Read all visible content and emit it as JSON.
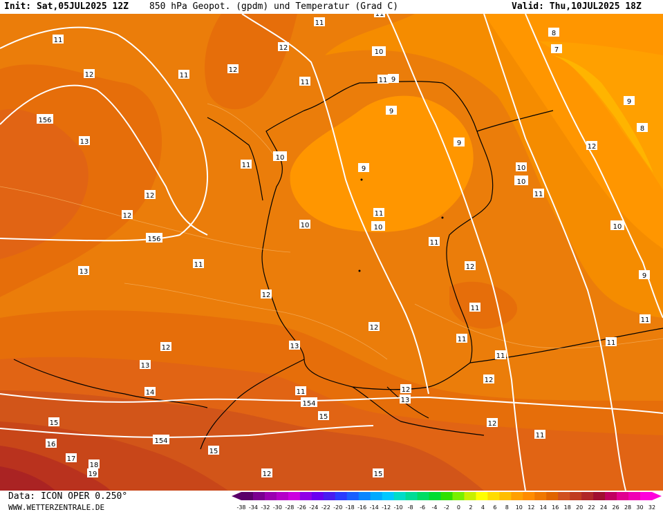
{
  "header": {
    "init": "Init: Sat,05JUL2025 12Z",
    "title": "850 hPa Geopot. (gpdm) und Temperatur (Grad C)",
    "valid": "Valid: Thu,10JUL2025 18Z"
  },
  "footer": {
    "data_source": "Data: ICON OPER 0.250°",
    "website": "WWW.WETTERZENTRALE.DE"
  },
  "legend": {
    "ticks": [
      "-38",
      "-34",
      "-32",
      "-30",
      "-28",
      "-26",
      "-24",
      "-22",
      "-20",
      "-18",
      "-16",
      "-14",
      "-12",
      "-10",
      "-8",
      "-6",
      "-4",
      "-2",
      "0",
      "2",
      "4",
      "6",
      "8",
      "10",
      "12",
      "14",
      "16",
      "18",
      "20",
      "22",
      "24",
      "26",
      "28",
      "30",
      "32"
    ],
    "colors": [
      "#5a006a",
      "#7a0090",
      "#9a00b0",
      "#b400c8",
      "#cc00e0",
      "#9000e6",
      "#6a00f0",
      "#4a1cf0",
      "#2a3cff",
      "#1a60ff",
      "#0a86ff",
      "#00aaff",
      "#00c8ff",
      "#00dcc8",
      "#00dc96",
      "#00dc64",
      "#00dc32",
      "#30e000",
      "#78f000",
      "#c8f000",
      "#ffff00",
      "#ffdc00",
      "#ffbe00",
      "#ffa000",
      "#ff8c00",
      "#f07800",
      "#e06400",
      "#d05020",
      "#c03c20",
      "#b02828",
      "#a01030",
      "#c00060",
      "#e00090",
      "#f000b4",
      "#ff00dc"
    ]
  },
  "colors": {
    "temp_7_8": "#ffb400",
    "temp_8_9": "#ffa000",
    "temp_9_10": "#ff9600",
    "temp_10_11": "#f58c00",
    "temp_11_12": "#eb7d0a",
    "temp_12_13": "#e66e0a",
    "temp_13_14": "#e16414",
    "temp_14_15": "#d25519",
    "temp_15_16": "#c84619",
    "temp_16_18": "#b9321e",
    "temp_18_20": "#aa2323",
    "geopot_line": "#ffffff",
    "border_line": "#000000"
  },
  "geopot_labels": [
    "154",
    "156",
    "156",
    "154",
    "154",
    "10",
    "10",
    "10",
    "10",
    "10"
  ],
  "temp_labels": [
    "11",
    "11",
    "11",
    "12",
    "12",
    "11",
    "11",
    "10",
    "11",
    "12",
    "9",
    "13",
    "11",
    "12",
    "12",
    "9",
    "9",
    "10",
    "11",
    "9",
    "8",
    "7",
    "8",
    "9",
    "12",
    "11",
    "10",
    "11",
    "10",
    "11",
    "13",
    "12",
    "11",
    "12",
    "9",
    "12",
    "11",
    "12",
    "13",
    "11",
    "13",
    "12",
    "11",
    "11",
    "14",
    "11",
    "12",
    "13",
    "15",
    "15",
    "15",
    "15",
    "16",
    "17",
    "18",
    "19",
    "12",
    "11",
    "12"
  ]
}
